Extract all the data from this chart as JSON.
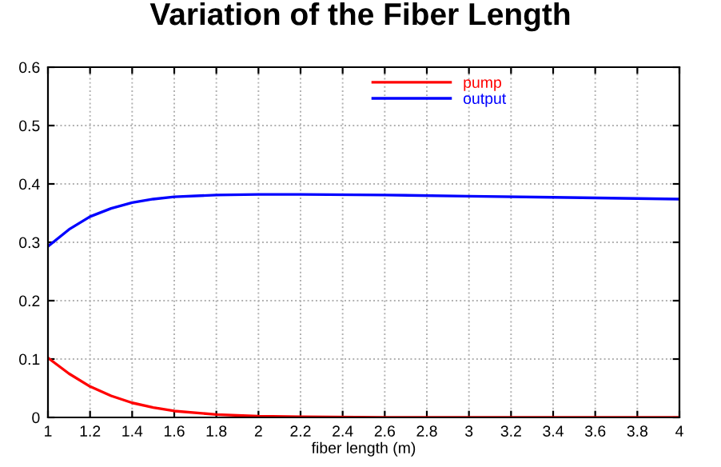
{
  "chart_data": {
    "type": "line",
    "title": "Variation of the Fiber Length",
    "xlabel": "fiber length (m)",
    "xlim": [
      1,
      4
    ],
    "xticks": [
      1,
      1.2,
      1.4,
      1.6,
      1.8,
      2,
      2.2,
      2.4,
      2.6,
      2.8,
      3,
      3.2,
      3.4,
      3.6,
      3.8,
      4
    ],
    "ylim": [
      0,
      0.6
    ],
    "yticks": [
      0,
      0.1,
      0.2,
      0.3,
      0.4,
      0.5,
      0.6
    ],
    "grid": true,
    "legend": "top",
    "marker": "none",
    "line_style": "solid",
    "series": [
      {
        "name": "pump",
        "color": "#ff0000",
        "x": [
          1,
          1.1,
          1.2,
          1.3,
          1.4,
          1.5,
          1.6,
          1.8,
          2,
          2.2,
          2.6,
          3,
          4
        ],
        "values": [
          0.102,
          0.075,
          0.053,
          0.037,
          0.025,
          0.017,
          0.011,
          0.005,
          0.002,
          0.001,
          0,
          0,
          0
        ]
      },
      {
        "name": "output",
        "color": "#0000ff",
        "x": [
          1,
          1.1,
          1.2,
          1.3,
          1.4,
          1.5,
          1.6,
          1.8,
          2,
          2.2,
          2.6,
          3,
          3.4,
          3.8,
          4
        ],
        "values": [
          0.293,
          0.322,
          0.344,
          0.358,
          0.368,
          0.374,
          0.378,
          0.381,
          0.382,
          0.382,
          0.381,
          0.379,
          0.377,
          0.375,
          0.374
        ]
      }
    ]
  }
}
